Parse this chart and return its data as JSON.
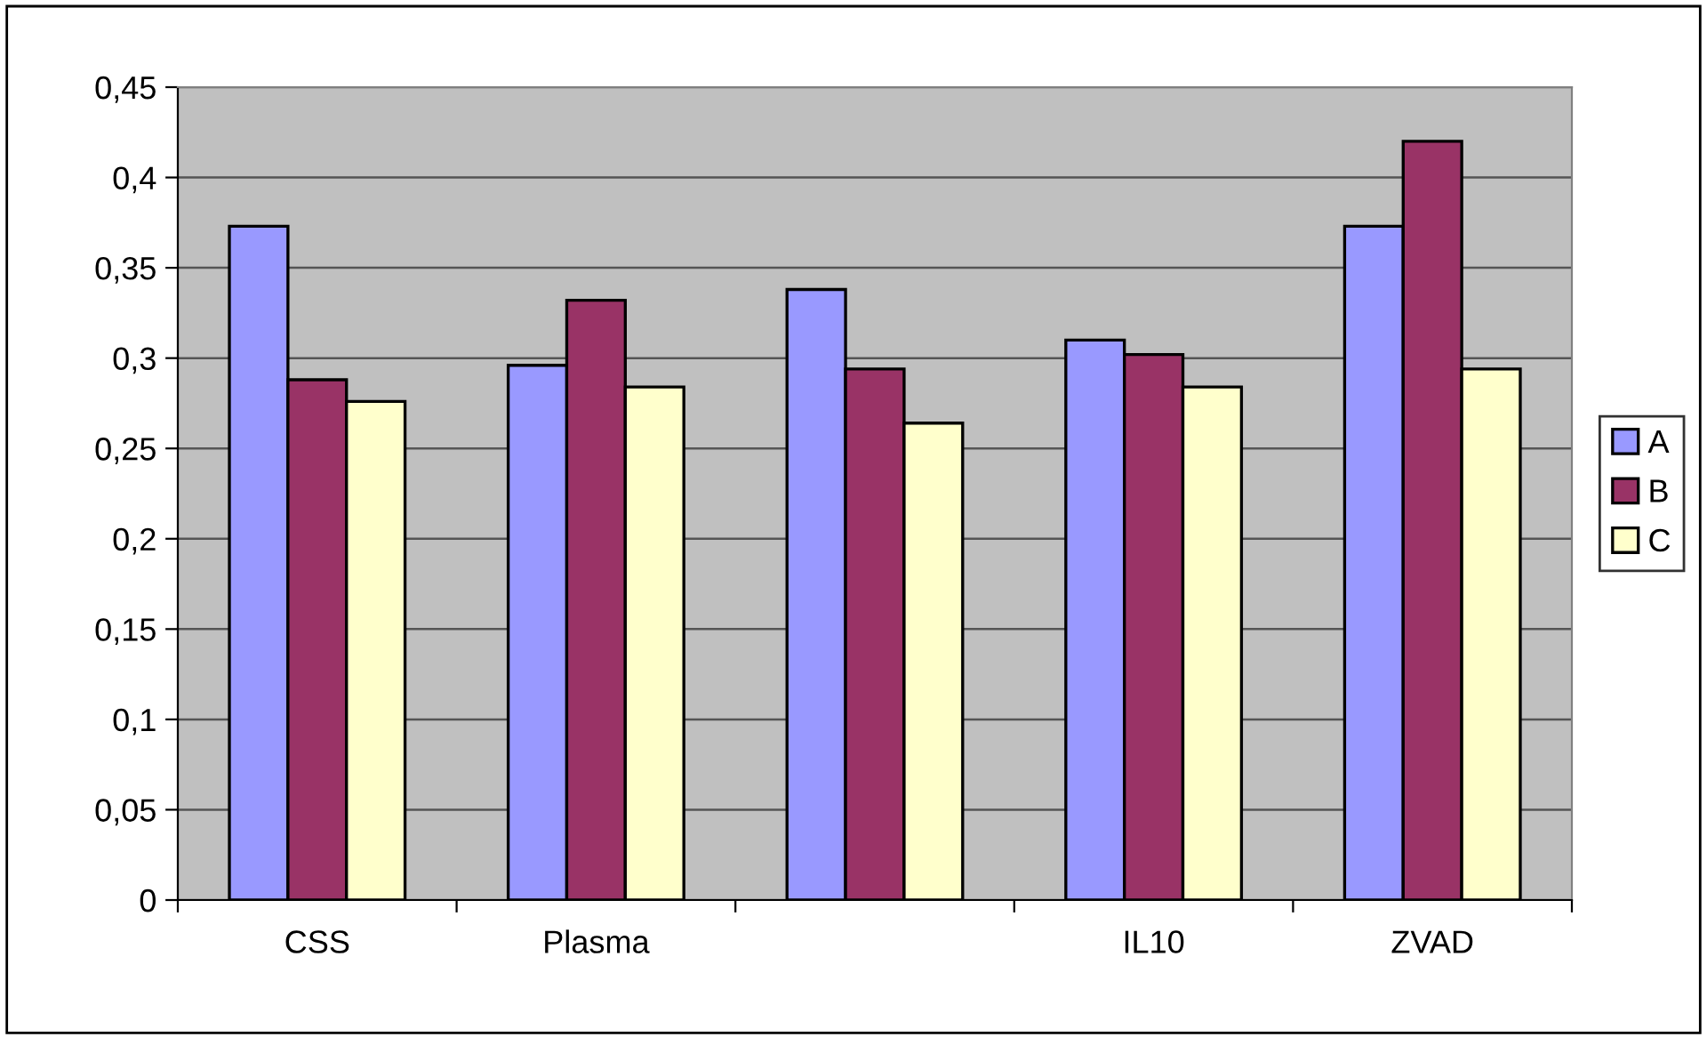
{
  "chart_data": {
    "type": "bar",
    "categories": [
      "CSS",
      "Plasma",
      null,
      "IL10",
      "ZVAD"
    ],
    "series": [
      {
        "name": "A",
        "color": "#9999ff",
        "values": [
          0.373,
          0.296,
          0.338,
          0.31,
          0.373
        ]
      },
      {
        "name": "B",
        "color": "#993366",
        "values": [
          0.288,
          0.332,
          0.294,
          0.302,
          0.42
        ]
      },
      {
        "name": "C",
        "color": "#ffffcc",
        "values": [
          0.276,
          0.284,
          0.264,
          0.284,
          0.294
        ]
      }
    ],
    "ylim": [
      0,
      0.45
    ],
    "yticks": [
      {
        "value": 0,
        "label": "0"
      },
      {
        "value": 0.05,
        "label": "0,05"
      },
      {
        "value": 0.1,
        "label": "0,1"
      },
      {
        "value": 0.15,
        "label": "0,15"
      },
      {
        "value": 0.2,
        "label": "0,2"
      },
      {
        "value": 0.25,
        "label": "0,25"
      },
      {
        "value": 0.3,
        "label": "0,3"
      },
      {
        "value": 0.35,
        "label": "0,35"
      },
      {
        "value": 0.4,
        "label": "0,4"
      },
      {
        "value": 0.45,
        "label": "0,45"
      }
    ],
    "grid": "y",
    "legend": "right"
  }
}
